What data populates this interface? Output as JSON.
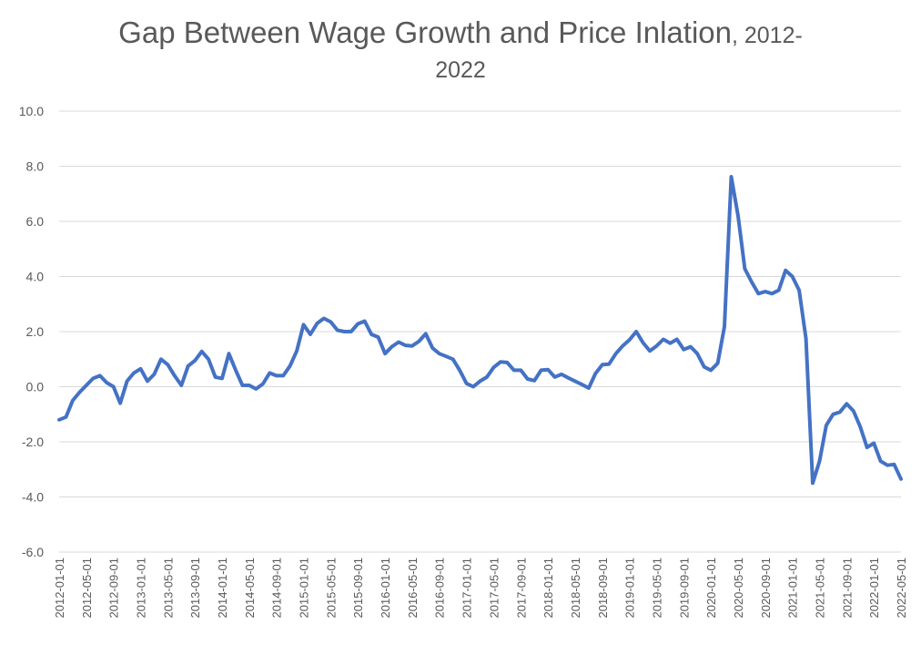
{
  "chart_data": {
    "type": "line",
    "title": "Gap Between Wage Growth and Price Inlation",
    "title_years_line1": ", 2012-",
    "title_years_line2": "2022",
    "xlabel": "",
    "ylabel": "",
    "ylim": [
      -6.0,
      10.0
    ],
    "yticks": [
      "10.0",
      "8.0",
      "6.0",
      "4.0",
      "2.0",
      "0.0",
      "-2.0",
      "-4.0",
      "-6.0"
    ],
    "ytick_values": [
      10,
      8,
      6,
      4,
      2,
      0,
      -2,
      -4,
      -6
    ],
    "xticks": [
      "2012-01-01",
      "2012-05-01",
      "2012-09-01",
      "2013-01-01",
      "2013-05-01",
      "2013-09-01",
      "2014-01-01",
      "2014-05-01",
      "2014-09-01",
      "2015-01-01",
      "2015-05-01",
      "2015-09-01",
      "2016-01-01",
      "2016-05-01",
      "2016-09-01",
      "2017-01-01",
      "2017-05-01",
      "2017-09-01",
      "2018-01-01",
      "2018-05-01",
      "2018-09-01",
      "2019-01-01",
      "2019-05-01",
      "2019-09-01",
      "2020-01-01",
      "2020-05-01",
      "2020-09-01",
      "2021-01-01",
      "2021-05-01",
      "2021-09-01",
      "2022-01-01",
      "2022-05-01"
    ],
    "grid": true,
    "legend": "none",
    "line_color": "#4472C4",
    "gridline_color": "#D9D9D9",
    "x_start": "2012-01",
    "x_end": "2022-05",
    "x_frequency": "monthly",
    "values": [
      -1.2,
      -1.1,
      -0.5,
      -0.2,
      0.05,
      0.3,
      0.4,
      0.15,
      0.0,
      -0.6,
      0.2,
      0.5,
      0.65,
      0.2,
      0.45,
      1.0,
      0.8,
      0.4,
      0.05,
      0.75,
      0.95,
      1.28,
      1.0,
      0.35,
      0.3,
      1.2,
      0.6,
      0.05,
      0.05,
      -0.08,
      0.1,
      0.5,
      0.4,
      0.4,
      0.75,
      1.3,
      2.25,
      1.9,
      2.3,
      2.48,
      2.35,
      2.05,
      2.0,
      2.0,
      2.28,
      2.38,
      1.9,
      1.8,
      1.2,
      1.45,
      1.62,
      1.5,
      1.48,
      1.65,
      1.92,
      1.4,
      1.2,
      1.1,
      1.0,
      0.6,
      0.12,
      0.0,
      0.2,
      0.35,
      0.7,
      0.9,
      0.88,
      0.6,
      0.6,
      0.28,
      0.22,
      0.6,
      0.62,
      0.35,
      0.45,
      0.32,
      0.2,
      0.08,
      -0.05,
      0.48,
      0.8,
      0.82,
      1.2,
      1.48,
      1.7,
      2.0,
      1.6,
      1.3,
      1.48,
      1.72,
      1.58,
      1.72,
      1.35,
      1.45,
      1.2,
      0.72,
      0.6,
      0.85,
      2.18,
      7.62,
      6.2,
      4.28,
      3.8,
      3.38,
      3.45,
      3.38,
      3.5,
      4.22,
      4.0,
      3.5,
      1.75,
      -3.5,
      -2.7,
      -1.4,
      -1.0,
      -0.92,
      -0.62,
      -0.88,
      -1.45,
      -2.2,
      -2.05,
      -2.7,
      -2.85,
      -2.82,
      -3.35
    ]
  }
}
